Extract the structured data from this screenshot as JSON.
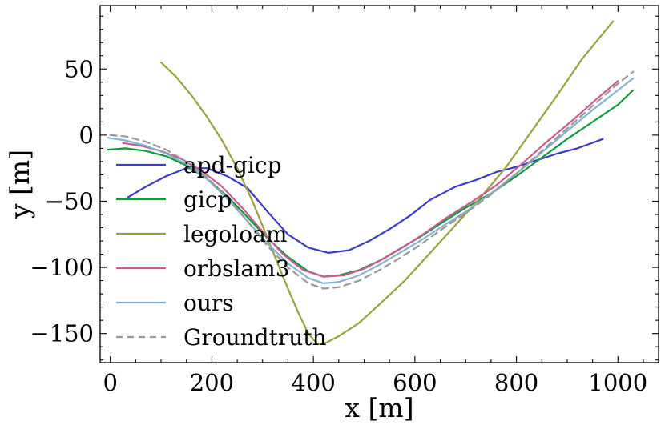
{
  "chart_data": {
    "type": "line",
    "title": "",
    "xlabel": "x [m]",
    "ylabel": "y [m]",
    "xlim": [
      -20,
      1080
    ],
    "ylim": [
      -172,
      98
    ],
    "xticks": [
      0,
      200,
      400,
      600,
      800,
      1000
    ],
    "xtick_labels": [
      "0",
      "200",
      "400",
      "600",
      "800",
      "1000"
    ],
    "yticks": [
      50,
      0,
      -50,
      -100,
      -150
    ],
    "ytick_labels": [
      "50",
      "0",
      "−50",
      "−100",
      "−150"
    ],
    "grid": false,
    "legend_position": "center-left",
    "series": [
      {
        "name": "apd-gicp",
        "color": "#3a3acd",
        "dash": "",
        "points": [
          [
            35,
            -47
          ],
          [
            70,
            -39
          ],
          [
            110,
            -31
          ],
          [
            150,
            -25
          ],
          [
            190,
            -25
          ],
          [
            230,
            -31
          ],
          [
            270,
            -40
          ],
          [
            310,
            -58
          ],
          [
            350,
            -75
          ],
          [
            390,
            -85
          ],
          [
            430,
            -89
          ],
          [
            470,
            -87
          ],
          [
            510,
            -80
          ],
          [
            550,
            -71
          ],
          [
            590,
            -61
          ],
          [
            630,
            -49
          ],
          [
            680,
            -39
          ],
          [
            720,
            -34
          ],
          [
            760,
            -28
          ],
          [
            800,
            -24
          ],
          [
            840,
            -19
          ],
          [
            880,
            -14
          ],
          [
            920,
            -10
          ],
          [
            970,
            -3
          ]
        ]
      },
      {
        "name": "gicp",
        "color": "#0f9a3c",
        "dash": "",
        "points": [
          [
            -5,
            -11
          ],
          [
            30,
            -10
          ],
          [
            70,
            -12
          ],
          [
            110,
            -16
          ],
          [
            150,
            -23
          ],
          [
            190,
            -33
          ],
          [
            230,
            -46
          ],
          [
            270,
            -62
          ],
          [
            310,
            -78
          ],
          [
            350,
            -92
          ],
          [
            390,
            -103
          ],
          [
            420,
            -107
          ],
          [
            450,
            -106
          ],
          [
            490,
            -102
          ],
          [
            530,
            -95
          ],
          [
            570,
            -86
          ],
          [
            610,
            -77
          ],
          [
            650,
            -67
          ],
          [
            700,
            -55
          ],
          [
            750,
            -44
          ],
          [
            800,
            -31
          ],
          [
            850,
            -17
          ],
          [
            900,
            -3
          ],
          [
            950,
            10
          ],
          [
            1000,
            23
          ],
          [
            1030,
            34
          ]
        ]
      },
      {
        "name": "legoloam",
        "color": "#9aa03e",
        "dash": "",
        "points": [
          [
            100,
            55
          ],
          [
            130,
            44
          ],
          [
            160,
            30
          ],
          [
            190,
            14
          ],
          [
            220,
            -4
          ],
          [
            250,
            -25
          ],
          [
            280,
            -50
          ],
          [
            310,
            -78
          ],
          [
            340,
            -107
          ],
          [
            370,
            -134
          ],
          [
            390,
            -150
          ],
          [
            408,
            -158
          ],
          [
            425,
            -157
          ],
          [
            450,
            -152
          ],
          [
            490,
            -142
          ],
          [
            530,
            -128
          ],
          [
            580,
            -110
          ],
          [
            630,
            -89
          ],
          [
            680,
            -68
          ],
          [
            730,
            -47
          ],
          [
            780,
            -24
          ],
          [
            830,
            3
          ],
          [
            880,
            30
          ],
          [
            930,
            58
          ],
          [
            990,
            86
          ]
        ]
      },
      {
        "name": "orbslam3",
        "color": "#c85b8e",
        "dash": "",
        "points": [
          [
            25,
            -6
          ],
          [
            60,
            -8
          ],
          [
            100,
            -12
          ],
          [
            140,
            -18
          ],
          [
            180,
            -27
          ],
          [
            220,
            -39
          ],
          [
            260,
            -55
          ],
          [
            300,
            -73
          ],
          [
            340,
            -90
          ],
          [
            380,
            -102
          ],
          [
            420,
            -107
          ],
          [
            460,
            -106
          ],
          [
            500,
            -101
          ],
          [
            540,
            -93
          ],
          [
            580,
            -84
          ],
          [
            620,
            -74
          ],
          [
            660,
            -63
          ],
          [
            710,
            -51
          ],
          [
            760,
            -38
          ],
          [
            810,
            -22
          ],
          [
            860,
            -5
          ],
          [
            910,
            11
          ],
          [
            960,
            28
          ],
          [
            1000,
            41
          ]
        ]
      },
      {
        "name": "ours",
        "color": "#84b4d0",
        "dash": "",
        "points": [
          [
            -5,
            -2
          ],
          [
            30,
            -4
          ],
          [
            70,
            -8
          ],
          [
            110,
            -14
          ],
          [
            150,
            -22
          ],
          [
            190,
            -33
          ],
          [
            230,
            -48
          ],
          [
            270,
            -65
          ],
          [
            310,
            -82
          ],
          [
            350,
            -97
          ],
          [
            390,
            -108
          ],
          [
            420,
            -112
          ],
          [
            450,
            -111
          ],
          [
            490,
            -106
          ],
          [
            530,
            -98
          ],
          [
            570,
            -89
          ],
          [
            610,
            -80
          ],
          [
            650,
            -70
          ],
          [
            700,
            -58
          ],
          [
            750,
            -44
          ],
          [
            800,
            -29
          ],
          [
            850,
            -13
          ],
          [
            900,
            3
          ],
          [
            950,
            19
          ],
          [
            1000,
            34
          ],
          [
            1030,
            43
          ]
        ]
      },
      {
        "name": "Groundtruth",
        "color": "#999999",
        "dash": "8,6",
        "points": [
          [
            0,
            0
          ],
          [
            30,
            -1
          ],
          [
            70,
            -5
          ],
          [
            110,
            -11
          ],
          [
            150,
            -20
          ],
          [
            190,
            -32
          ],
          [
            230,
            -47
          ],
          [
            270,
            -65
          ],
          [
            310,
            -84
          ],
          [
            350,
            -100
          ],
          [
            390,
            -112
          ],
          [
            420,
            -116
          ],
          [
            450,
            -115
          ],
          [
            490,
            -110
          ],
          [
            530,
            -102
          ],
          [
            570,
            -93
          ],
          [
            610,
            -83
          ],
          [
            650,
            -72
          ],
          [
            700,
            -59
          ],
          [
            750,
            -45
          ],
          [
            800,
            -29
          ],
          [
            850,
            -12
          ],
          [
            900,
            5
          ],
          [
            950,
            22
          ],
          [
            1000,
            39
          ],
          [
            1030,
            48
          ]
        ]
      }
    ]
  }
}
